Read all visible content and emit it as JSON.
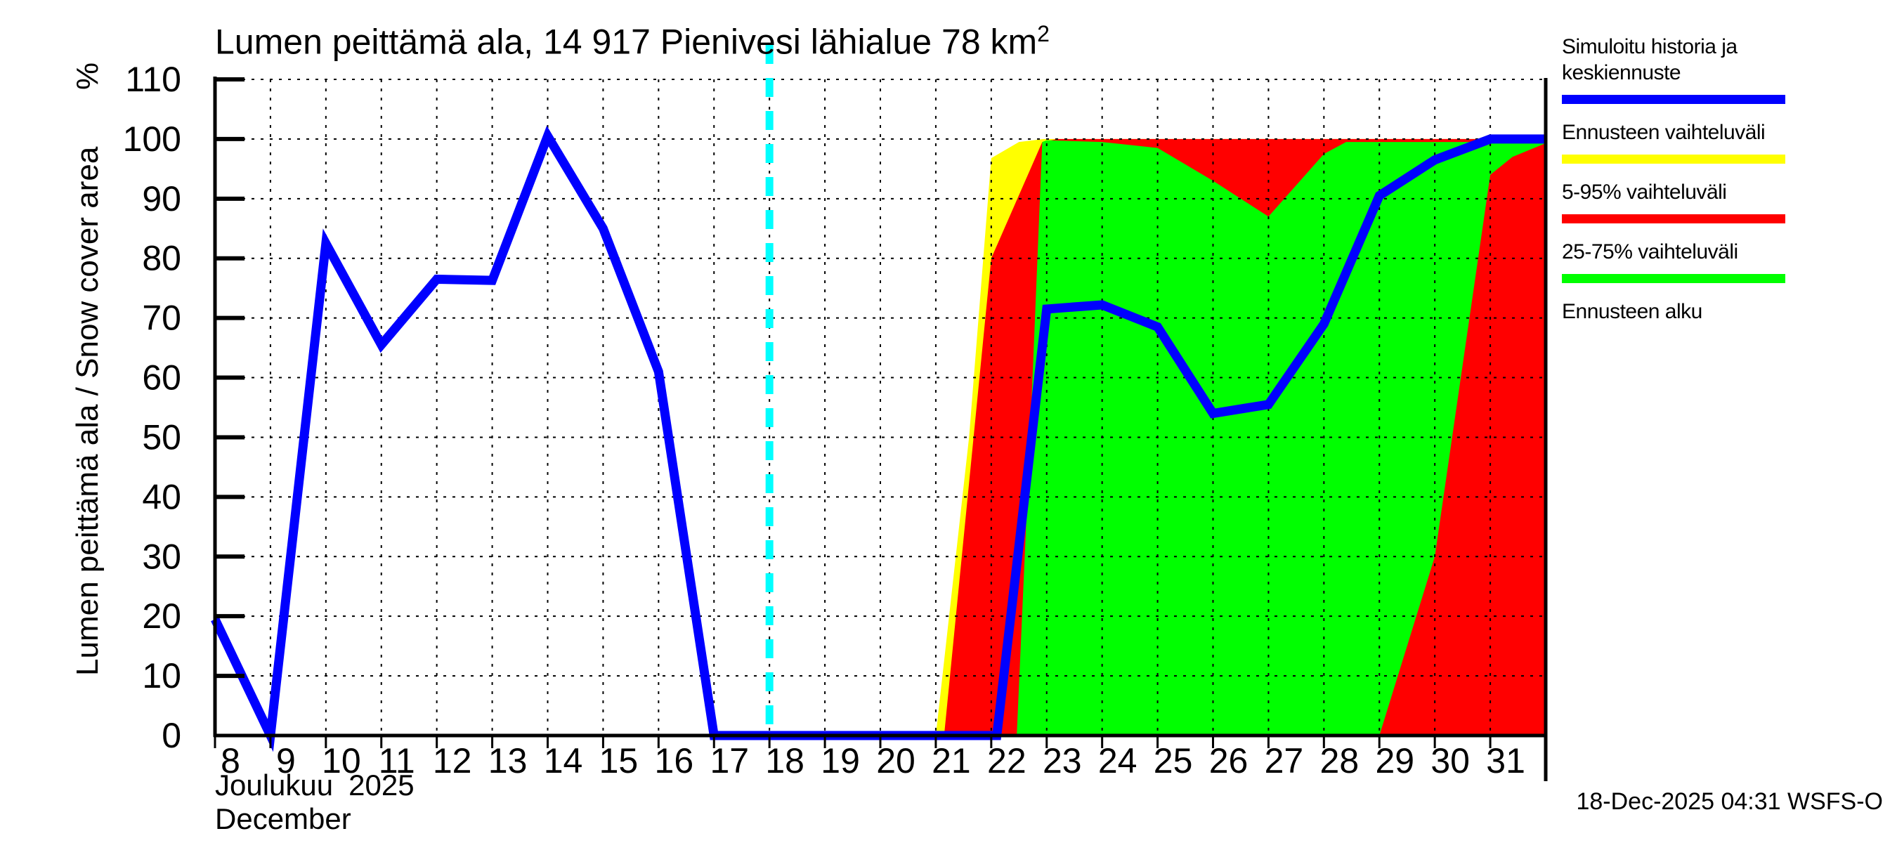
{
  "title": "Lumen peittämä ala, 14 917 Pienivesi lähialue 78 km²",
  "y_axis": {
    "unit": "%",
    "label": "Lumen peittämä ala / Snow cover area"
  },
  "x_axis": {
    "month_fi": "Joulukuu",
    "year": "2025",
    "month_en": "December"
  },
  "footer": {
    "timestamp": "18-Dec-2025 04:31 WSFS-O"
  },
  "colors": {
    "median": "#0000ff",
    "range": "#ffff00",
    "p5_95": "#ff0000",
    "p25_75": "#00ff00",
    "forecast_start": "#00ffff",
    "grid": "#000000",
    "frame": "#000000"
  },
  "legend": [
    {
      "label": "Simuloitu historia ja keskiennuste",
      "color": "#0000ff",
      "style": "solid"
    },
    {
      "label": "Ennusteen vaihteluväli",
      "color": "#ffff00",
      "style": "solid"
    },
    {
      "label": "5-95% vaihteluväli",
      "color": "#ff0000",
      "style": "solid"
    },
    {
      "label": "25-75% vaihteluväli",
      "color": "#00ff00",
      "style": "solid"
    },
    {
      "label": "Ennusteen alku",
      "color": "#00ffff",
      "style": "dashed"
    }
  ],
  "chart_data": {
    "type": "area+line",
    "title": "Lumen peittämä ala, 14 917 Pienivesi lähialue 78 km²",
    "xlabel": "Joulukuu 2025 / December",
    "ylabel": "Lumen peittämä ala / Snow cover area (%)",
    "x_domain": [
      8,
      32
    ],
    "y_domain": [
      0,
      110
    ],
    "x_ticks": [
      8,
      9,
      10,
      11,
      12,
      13,
      14,
      15,
      16,
      17,
      18,
      19,
      20,
      21,
      22,
      23,
      24,
      25,
      26,
      27,
      28,
      29,
      30,
      31
    ],
    "y_ticks": [
      0,
      10,
      20,
      30,
      40,
      50,
      60,
      70,
      80,
      90,
      100,
      110
    ],
    "grid": true,
    "forecast_start_x": 18,
    "median_line": {
      "name": "Simuloitu historia ja keskiennuste",
      "color": "#0000ff",
      "points": [
        [
          8,
          19.5
        ],
        [
          9,
          0
        ],
        [
          10,
          82.5
        ],
        [
          11,
          65.5
        ],
        [
          12,
          76.5
        ],
        [
          13,
          76.3
        ],
        [
          14,
          100.5
        ],
        [
          15,
          85
        ],
        [
          16,
          61
        ],
        [
          17,
          0
        ],
        [
          22.1,
          0
        ],
        [
          23,
          71.5
        ],
        [
          24,
          72.2
        ],
        [
          25,
          68.5
        ],
        [
          26,
          54
        ],
        [
          27,
          55.5
        ],
        [
          28,
          69
        ],
        [
          29,
          90.5
        ],
        [
          30,
          96.5
        ],
        [
          31,
          100
        ],
        [
          32,
          100
        ]
      ]
    },
    "bands": [
      {
        "name": "Ennusteen vaihteluväli",
        "color": "#ffff00",
        "upper": [
          [
            21.0,
            0
          ],
          [
            21.6,
            50
          ],
          [
            22,
            96.8
          ],
          [
            22.5,
            99.5
          ],
          [
            22.95,
            100
          ],
          [
            32,
            100
          ]
        ],
        "lower": [
          [
            21.0,
            0
          ],
          [
            32,
            0
          ]
        ]
      },
      {
        "name": "5-95% vaihteluväli",
        "color": "#ff0000",
        "upper": [
          [
            21.15,
            0
          ],
          [
            22,
            80
          ],
          [
            22.92,
            99.5
          ],
          [
            23.2,
            100
          ],
          [
            32,
            100
          ]
        ],
        "lower": [
          [
            21.15,
            0
          ],
          [
            32,
            0
          ]
        ]
      },
      {
        "name": "25-75% vaihteluväli",
        "color": "#00ff00",
        "upper": [
          [
            22.46,
            0
          ],
          [
            22.7,
            50
          ],
          [
            22.92,
            99.5
          ],
          [
            23,
            99.8
          ],
          [
            24,
            99.5
          ],
          [
            25,
            98.5
          ],
          [
            26,
            93
          ],
          [
            27,
            87
          ],
          [
            28,
            97.5
          ],
          [
            28.4,
            99.5
          ],
          [
            31,
            99.5
          ],
          [
            32,
            99.8
          ]
        ],
        "lower": [
          [
            22.46,
            0
          ],
          [
            29,
            0
          ],
          [
            30,
            30
          ],
          [
            31,
            94
          ],
          [
            31.4,
            97
          ],
          [
            32,
            99.3
          ]
        ]
      }
    ]
  }
}
